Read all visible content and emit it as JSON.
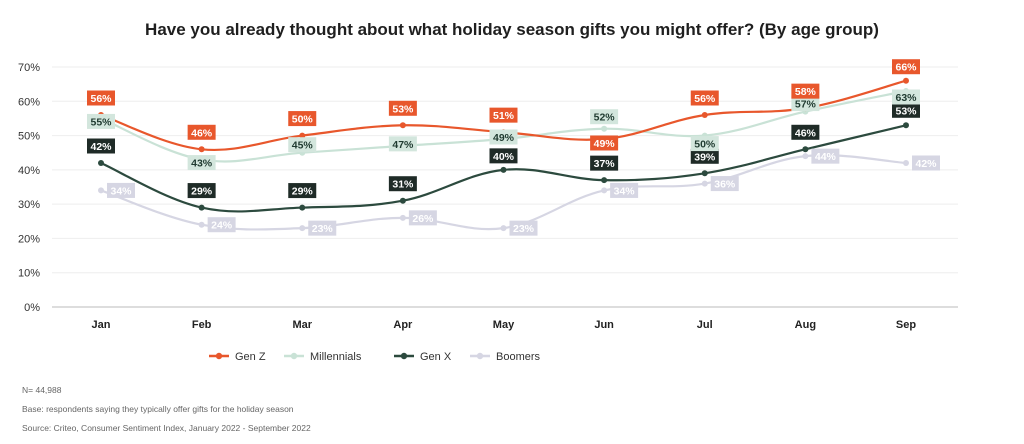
{
  "chart_data": {
    "type": "line",
    "title": "Have you already thought about what holiday season gifts you might offer? (By age group)",
    "xlabel": "",
    "ylabel": "",
    "categories": [
      "Jan",
      "Feb",
      "Mar",
      "Apr",
      "May",
      "Jun",
      "Jul",
      "Aug",
      "Sep"
    ],
    "ylim": [
      0,
      70
    ],
    "yticks": [
      "0%",
      "10%",
      "20%",
      "30%",
      "40%",
      "50%",
      "60%",
      "70%"
    ],
    "grid": true,
    "legend_position": "bottom",
    "series": [
      {
        "name": "Gen Z",
        "color": "#e8572c",
        "label_bg": "#e8572c",
        "label_fg": "#ffffff",
        "values": [
          56,
          46,
          50,
          53,
          51,
          49,
          56,
          58,
          66
        ],
        "labels": [
          "56%",
          "46%",
          "50%",
          "53%",
          "51%",
          "49%",
          "56%",
          "58%",
          "66%"
        ]
      },
      {
        "name": "Millennials",
        "color": "#c9e2d6",
        "label_bg": "#d3e6dd",
        "label_fg": "#1f3a30",
        "values": [
          55,
          43,
          45,
          47,
          49,
          52,
          50,
          57,
          63
        ],
        "labels": [
          "55%",
          "43%",
          "45%",
          "47%",
          "49%",
          "52%",
          "50%",
          "57%",
          "63%"
        ]
      },
      {
        "name": "Gen X",
        "color": "#2c4a3e",
        "label_bg": "#1f2b27",
        "label_fg": "#ffffff",
        "values": [
          42,
          29,
          29,
          31,
          40,
          37,
          39,
          46,
          53
        ],
        "labels": [
          "42%",
          "29%",
          "29%",
          "31%",
          "40%",
          "37%",
          "39%",
          "46%",
          "53%"
        ]
      },
      {
        "name": "Boomers",
        "color": "#d6d6e3",
        "label_bg": "#d6d6e3",
        "label_fg": "#ffffff",
        "values": [
          34,
          24,
          23,
          26,
          23,
          34,
          36,
          44,
          42
        ],
        "labels": [
          "34%",
          "24%",
          "23%",
          "26%",
          "23%",
          "34%",
          "36%",
          "44%",
          "42%"
        ]
      }
    ]
  },
  "notes": {
    "n": "N= 44,988",
    "base": "Base: respondents saying they typically offer gifts for the holiday season",
    "source": "Source: Criteo, Consumer Sentiment Index, January 2022 - September 2022"
  }
}
